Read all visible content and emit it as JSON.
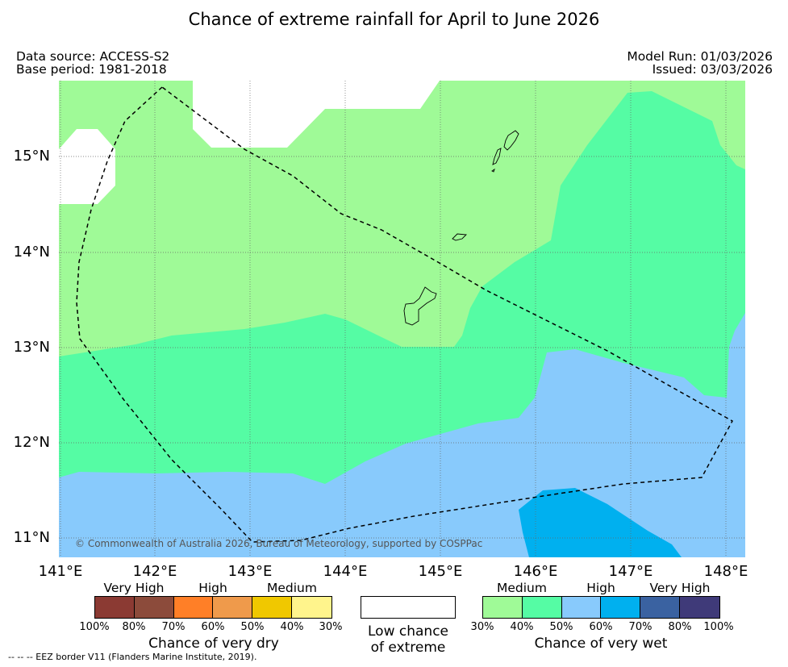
{
  "title": "Chance of extreme rainfall for April to June 2026",
  "meta": {
    "data_source": "Data source: ACCESS-S2",
    "base_period": "Base period: 1981-2018",
    "model_run": "Model Run: 01/03/2026",
    "issued": "Issued: 03/03/2026"
  },
  "map": {
    "lat_ticks": [
      "15°N",
      "14°N",
      "13°N",
      "12°N",
      "11°N"
    ],
    "lon_ticks": [
      "141°E",
      "142°E",
      "143°E",
      "144°E",
      "145°E",
      "146°E",
      "147°E",
      "148°E"
    ],
    "copyright": "© Commonwealth of Australia 2026, Bureau of Meteorology, supported by COSPPac",
    "islands": [
      "guam-island",
      "rota-island",
      "tinian-island",
      "saipan-island"
    ],
    "colors": {
      "low": "#ffffff",
      "wet_medium": "#9ffa97",
      "wet_medium_high": "#55fca4",
      "wet_high": "#88cafc",
      "wet_high_strong": "#00b0ef"
    }
  },
  "legend": {
    "dry": {
      "categories": [
        "Very High",
        "High",
        "Medium"
      ],
      "colors": [
        "#8b3a33",
        "#8c4b3b",
        "#ff7f27",
        "#ef9a4b",
        "#f0c800",
        "#fff48c"
      ],
      "percents": [
        "100%",
        "80%",
        "70%",
        "60%",
        "50%",
        "40%",
        "30%"
      ],
      "title": "Chance of very dry"
    },
    "low": {
      "line1": "Low chance",
      "line2": "of extreme"
    },
    "wet": {
      "categories": [
        "Medium",
        "High",
        "Very High"
      ],
      "colors": [
        "#9ffa97",
        "#55fca4",
        "#88cafc",
        "#00b0ef",
        "#3a62a1",
        "#3f3a79"
      ],
      "percents": [
        "30%",
        "40%",
        "50%",
        "60%",
        "70%",
        "80%",
        "100%"
      ],
      "title": "Chance of very wet"
    }
  },
  "footer": "--  --  -- EEZ border V11 (Flanders Marine Institute, 2019)."
}
